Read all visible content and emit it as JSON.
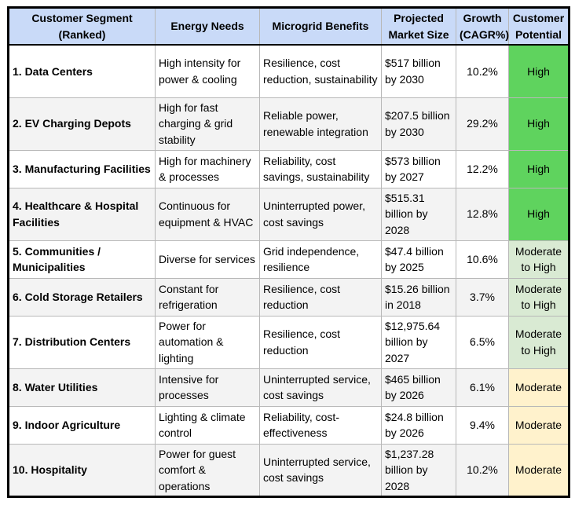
{
  "colors": {
    "header_bg": "#c9daf8",
    "potential": {
      "High": "#5fd35e",
      "Moderate to High": "#d9ead3",
      "Moderate": "#fff2cc"
    }
  },
  "columns": [
    "Customer Segment (Ranked)",
    "Energy Needs",
    "Microgrid Benefits",
    "Projected Market Size",
    "Growth (CAGR%)",
    "Customer Potential"
  ],
  "rows": [
    {
      "segment": "1. Data Centers",
      "needs": "High intensity for power & cooling",
      "benefits": "Resilience, cost reduction, sustainability",
      "market": "$517 billion by 2030",
      "growth": "10.2%",
      "potential": "High"
    },
    {
      "segment": "2. EV Charging Depots",
      "needs": "High for fast charging & grid stability",
      "benefits": "Reliable power, renewable integration",
      "market": "$207.5 billion by 2030",
      "growth": "29.2%",
      "potential": "High"
    },
    {
      "segment": "3. Manufacturing Facilities",
      "needs": "High for machinery & processes",
      "benefits": "Reliability, cost savings, sustainability",
      "market": "$573 billion by 2027",
      "growth": "12.2%",
      "potential": "High"
    },
    {
      "segment": "4. Healthcare & Hospital Facilities",
      "needs": "Continuous for equipment & HVAC",
      "benefits": "Uninterrupted power, cost savings",
      "market": "$515.31 billion by 2028",
      "growth": "12.8%",
      "potential": "High"
    },
    {
      "segment": "5. Communities / Municipalities",
      "needs": "Diverse for services",
      "benefits": "Grid independence, resilience",
      "market": "$47.4 billion by 2025",
      "growth": "10.6%",
      "potential": "Moderate to High"
    },
    {
      "segment": "6. Cold Storage Retailers",
      "needs": "Constant for refrigeration",
      "benefits": "Resilience, cost reduction",
      "market": "$15.26 billion in 2018",
      "growth": "3.7%",
      "potential": "Moderate to High"
    },
    {
      "segment": "7. Distribution Centers",
      "needs": "Power for automation & lighting",
      "benefits": "Resilience, cost reduction",
      "market": "$12,975.64 billion by 2027",
      "growth": "6.5%",
      "potential": "Moderate to High"
    },
    {
      "segment": "8. Water Utilities",
      "needs": "Intensive for processes",
      "benefits": "Uninterrupted service, cost savings",
      "market": "$465 billion by 2026",
      "growth": "6.1%",
      "potential": "Moderate"
    },
    {
      "segment": "9. Indoor Agriculture",
      "needs": "Lighting & climate control",
      "benefits": "Reliability, cost-effectiveness",
      "market": "$24.8 billion by 2026",
      "growth": "9.4%",
      "potential": "Moderate"
    },
    {
      "segment": "10. Hospitality",
      "needs": "Power for guest comfort & operations",
      "benefits": "Uninterrupted service, cost savings",
      "market": "$1,237.28 billion by 2028",
      "growth": "10.2%",
      "potential": "Moderate"
    }
  ]
}
